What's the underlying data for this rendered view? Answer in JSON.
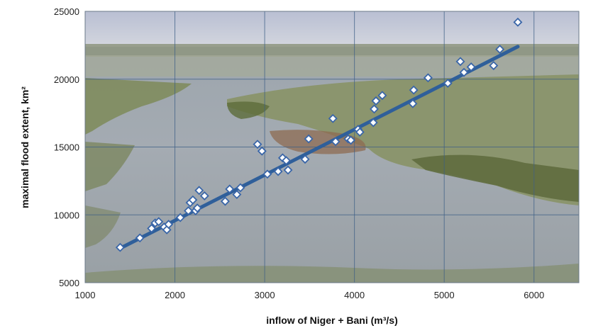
{
  "chart_data": {
    "type": "scatter",
    "xlabel": "inflow of  Niger + Bani (m³/s)",
    "ylabel": "maximal flood extent, km²",
    "xlim": [
      1000,
      6500
    ],
    "ylim": [
      5000,
      25000
    ],
    "x_ticks": [
      1000,
      2000,
      3000,
      4000,
      5000,
      6000
    ],
    "y_ticks": [
      5000,
      10000,
      15000,
      20000,
      25000
    ],
    "grid": true,
    "legend": "none",
    "background": "photo of a flooded river delta landscape",
    "colors": {
      "marker_fill": "#ffffff",
      "marker_stroke": "#3a66a8",
      "trendline": "#2f5f9a",
      "gridline": "#3d5f86"
    },
    "series": [
      {
        "marker": "diamond",
        "points": [
          [
            1390,
            7600
          ],
          [
            1610,
            8300
          ],
          [
            1740,
            9000
          ],
          [
            1780,
            9400
          ],
          [
            1820,
            9500
          ],
          [
            1880,
            9100
          ],
          [
            1910,
            8900
          ],
          [
            1930,
            9300
          ],
          [
            2060,
            9800
          ],
          [
            2150,
            10300
          ],
          [
            2170,
            10900
          ],
          [
            2200,
            11100
          ],
          [
            2230,
            10300
          ],
          [
            2250,
            10500
          ],
          [
            2270,
            11800
          ],
          [
            2330,
            11400
          ],
          [
            2560,
            11000
          ],
          [
            2610,
            11900
          ],
          [
            2690,
            11500
          ],
          [
            2730,
            12000
          ],
          [
            2920,
            15200
          ],
          [
            2970,
            14700
          ],
          [
            3030,
            13000
          ],
          [
            3150,
            13200
          ],
          [
            3200,
            14200
          ],
          [
            3240,
            14000
          ],
          [
            3260,
            13300
          ],
          [
            3450,
            14100
          ],
          [
            3490,
            15600
          ],
          [
            3760,
            17100
          ],
          [
            3790,
            15400
          ],
          [
            3930,
            15600
          ],
          [
            3960,
            15500
          ],
          [
            4040,
            16300
          ],
          [
            4060,
            16100
          ],
          [
            4210,
            16800
          ],
          [
            4220,
            17800
          ],
          [
            4240,
            18400
          ],
          [
            4310,
            18800
          ],
          [
            4650,
            18200
          ],
          [
            4660,
            19200
          ],
          [
            4820,
            20100
          ],
          [
            5040,
            19700
          ],
          [
            5180,
            21300
          ],
          [
            5220,
            20500
          ],
          [
            5300,
            20900
          ],
          [
            5550,
            21000
          ],
          [
            5620,
            22200
          ],
          [
            5820,
            24200
          ]
        ]
      }
    ],
    "trendline": {
      "type": "linear",
      "x": [
        1380,
        5820
      ],
      "y": [
        7500,
        22400
      ]
    }
  }
}
